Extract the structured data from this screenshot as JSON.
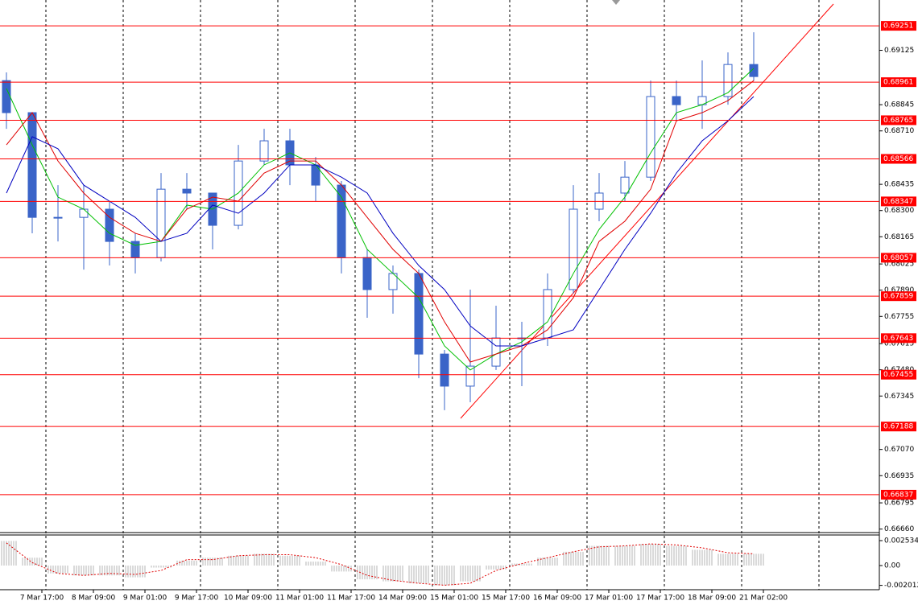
{
  "chart_data": [
    {
      "type": "candlestick",
      "color": "#3a64c8",
      "xlim": [
        0,
        273
      ],
      "x": [
        2,
        10,
        18,
        26,
        34,
        42,
        50,
        58,
        66,
        74,
        82,
        90,
        98,
        106,
        114,
        122,
        130,
        138,
        146,
        154,
        162,
        170,
        178,
        186,
        194,
        202,
        210,
        218,
        226,
        234
      ],
      "open": [
        0.68969,
        0.68804,
        0.68265,
        0.68265,
        0.68307,
        0.68141,
        0.68058,
        0.6841,
        0.6839,
        0.68224,
        0.68555,
        0.68659,
        0.68535,
        0.68431,
        0.68058,
        0.67893,
        0.67976,
        0.67561,
        0.67396,
        0.67499,
        0.67644,
        0.67644,
        0.67893,
        0.68307,
        0.6839,
        0.68472,
        0.68887,
        0.68845,
        0.68887,
        0.69052
      ],
      "high": [
        0.69011,
        0.68804,
        0.68431,
        0.68431,
        0.68348,
        0.68183,
        0.68493,
        0.68493,
        0.6839,
        0.68638,
        0.68721,
        0.68721,
        0.68576,
        0.68452,
        0.681,
        0.68017,
        0.67996,
        0.67582,
        0.67893,
        0.6781,
        0.67727,
        0.67976,
        0.68431,
        0.68493,
        0.68555,
        0.68969,
        0.68969,
        0.69073,
        0.69114,
        0.69218
      ],
      "low": [
        0.68721,
        0.68183,
        0.68141,
        0.67996,
        0.68017,
        0.67976,
        0.68038,
        0.68307,
        0.681,
        0.68203,
        0.68535,
        0.68431,
        0.68348,
        0.67976,
        0.67748,
        0.67769,
        0.67437,
        0.67272,
        0.67313,
        0.67479,
        0.67396,
        0.67603,
        0.67872,
        0.68245,
        0.68348,
        0.68452,
        0.68762,
        0.68721,
        0.68845,
        0.68969
      ],
      "close": [
        0.68804,
        0.68265,
        0.68265,
        0.68307,
        0.68141,
        0.68058,
        0.6841,
        0.6839,
        0.68224,
        0.68555,
        0.68659,
        0.68535,
        0.68431,
        0.68058,
        0.67893,
        0.67976,
        0.67561,
        0.67396,
        0.67499,
        0.67644,
        0.67644,
        0.67893,
        0.68307,
        0.6839,
        0.68472,
        0.68887,
        0.68845,
        0.68887,
        0.69052,
        0.6899
      ],
      "series": [
        {
          "color": "#00c000",
          "values": [
            0.68928,
            0.68638,
            0.68369,
            0.68307,
            0.68183,
            0.68121,
            0.68141,
            0.68328,
            0.68307,
            0.6839,
            0.68535,
            0.68597,
            0.68535,
            0.68369,
            0.681,
            0.67976,
            0.67851,
            0.67603,
            0.67479,
            0.67561,
            0.67624,
            0.67727,
            0.67976,
            0.68203,
            0.68369,
            0.68597,
            0.68804,
            0.68845,
            0.68907,
            0.69032
          ]
        },
        {
          "color": "#e00000",
          "values": [
            0.68638,
            0.68804,
            0.68555,
            0.6839,
            0.68265,
            0.68183,
            0.68141,
            0.68307,
            0.68369,
            0.68348,
            0.68493,
            0.68555,
            0.68555,
            0.68431,
            0.68265,
            0.681,
            0.67976,
            0.67727,
            0.6752,
            0.67561,
            0.67603,
            0.67686,
            0.67851,
            0.68141,
            0.68245,
            0.6841,
            0.68762,
            0.68804,
            0.68866,
            0.68969
          ]
        },
        {
          "color": "#0000c0",
          "values": [
            0.6839,
            0.6868,
            0.68618,
            0.68431,
            0.68348,
            0.68265,
            0.68141,
            0.68183,
            0.68328,
            0.68286,
            0.6839,
            0.68535,
            0.68535,
            0.68472,
            0.6839,
            0.68183,
            0.68017,
            0.67893,
            0.67706,
            0.67603,
            0.67603,
            0.67644,
            0.67686,
            0.67893,
            0.681,
            0.68286,
            0.68493,
            0.68659,
            0.68762,
            0.68887
          ]
        }
      ],
      "ylim": [
        0.66642,
        0.69384
      ],
      "yticks": [
        0.69125,
        0.68845,
        {
          "value": 0.6871,
          "label": "0.68710"
        },
        0.68435,
        {
          "value": 0.683,
          "label": "0.68300"
        },
        0.68165,
        0.68025,
        {
          "value": 0.6789,
          "label": "0.67890"
        },
        0.67755,
        0.67615,
        {
          "value": 0.6748,
          "label": "0.67480"
        },
        0.67345,
        {
          "value": 0.6707,
          "label": "0.67070"
        },
        0.66935,
        0.66795,
        {
          "value": 0.6666,
          "label": "0.66660"
        }
      ],
      "levels": [
        0.69251,
        0.68961,
        0.68765,
        0.68566,
        0.68347,
        0.68057,
        0.67859,
        0.67643,
        0.67455,
        0.67188,
        0.66837
      ],
      "level_color": "#ff0000",
      "xticks": [
        {
          "value": 13,
          "label": "7 Mar 17:00"
        },
        {
          "value": 29,
          "label": "8 Mar 09:00"
        },
        {
          "value": 45,
          "label": "9 Mar 01:00"
        },
        {
          "value": 61,
          "label": "9 Mar 17:00"
        },
        {
          "value": 77,
          "label": "10 Mar 09:00"
        },
        {
          "value": 93,
          "label": "11 Mar 01:00"
        },
        {
          "value": 109,
          "label": "11 Mar 17:00"
        },
        {
          "value": 125,
          "label": "14 Mar 09:00"
        },
        {
          "value": 141,
          "label": "15 Mar 01:00"
        },
        {
          "value": 157,
          "label": "15 Mar 17:00"
        },
        {
          "value": 173,
          "label": "16 Mar 09:00"
        },
        {
          "value": 189,
          "label": "17 Mar 01:00"
        },
        {
          "value": 205,
          "label": "17 Mar 17:00"
        },
        {
          "value": 221,
          "label": "18 Mar 09:00"
        },
        {
          "value": 237,
          "label": "21 Mar 02:00"
        }
      ]
    },
    {
      "type": "combo",
      "xlim": [
        0,
        273
      ],
      "x": [
        2,
        10,
        18,
        26,
        34,
        42,
        50,
        58,
        66,
        74,
        82,
        90,
        98,
        106,
        114,
        122,
        130,
        138,
        146,
        154,
        162,
        170,
        178,
        186,
        194,
        202,
        210,
        218,
        226,
        234
      ],
      "series": [
        {
          "type": "bar",
          "color": "#b4b4b4",
          "values": [
            0.0025,
            0.0008,
            -0.0008,
            -0.001,
            -0.001,
            -0.0012,
            -0.0002,
            0.0005,
            0.0008,
            0.001,
            0.0012,
            0.001,
            0.0004,
            -0.0006,
            -0.0014,
            -0.0016,
            -0.0018,
            -0.002,
            -0.0016,
            -0.0004,
            0.0002,
            0.0008,
            0.0014,
            0.002,
            0.002,
            0.0022,
            0.002,
            0.0016,
            0.0012,
            0.0012
          ]
        },
        {
          "type": "line",
          "color": "#e00000",
          "values": [
            0.0023,
            0.0003,
            -0.0008,
            -0.001,
            -0.0008,
            -0.0009,
            -0.0005,
            0.0006,
            0.0006,
            0.001,
            0.0011,
            0.0011,
            0.0008,
            0.0001,
            -0.001,
            -0.0015,
            -0.0018,
            -0.002,
            -0.0018,
            -0.0005,
            0.0002,
            0.0008,
            0.0014,
            0.0019,
            0.002,
            0.0022,
            0.0021,
            0.0018,
            0.0013,
            0.0012
          ]
        }
      ],
      "ylim": [
        -0.002371,
        0.003106
      ],
      "yticks": [
        0.002534,
        {
          "value": 0,
          "label": "0.00"
        },
        -0.002012
      ]
    }
  ]
}
